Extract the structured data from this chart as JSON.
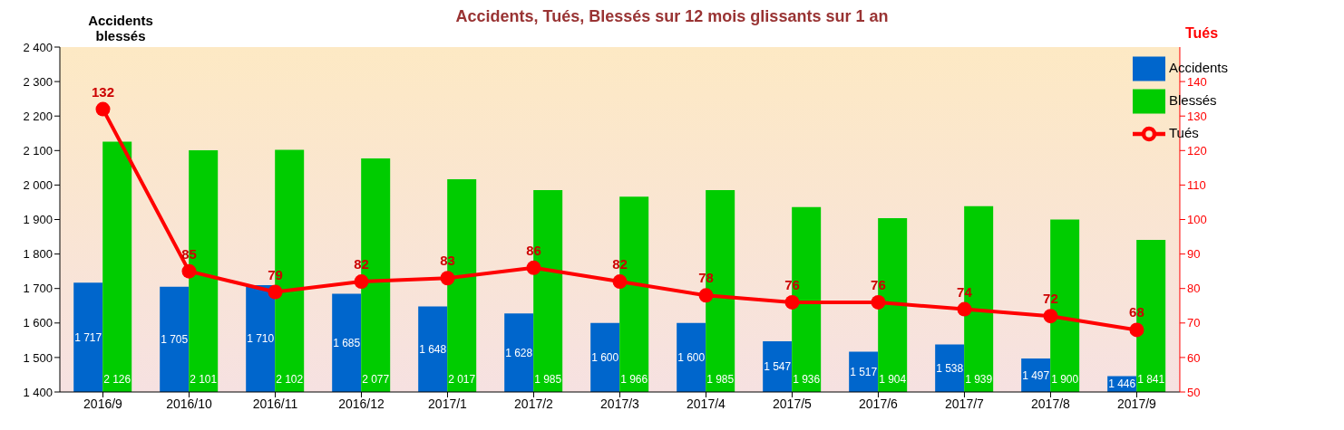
{
  "chart_data": {
    "type": "bar",
    "title": "Accidents, Tués, Blessés sur 12 mois glissants sur 1 an",
    "ylabel": "Accidents blessés",
    "y2label": "Tués",
    "categories": [
      "2016/9",
      "2016/10",
      "2016/11",
      "2016/12",
      "2017/1",
      "2017/2",
      "2017/3",
      "2017/4",
      "2017/5",
      "2017/6",
      "2017/7",
      "2017/8",
      "2017/9"
    ],
    "series": [
      {
        "name": "Accidents",
        "color": "#0066cc",
        "values": [
          1717,
          1705,
          1710,
          1685,
          1648,
          1628,
          1600,
          1600,
          1547,
          1517,
          1538,
          1497,
          1446
        ]
      },
      {
        "name": "Blessés",
        "color": "#00cc00",
        "values": [
          2126,
          2101,
          2102,
          2077,
          2017,
          1985,
          1966,
          1985,
          1936,
          1904,
          1939,
          1900,
          1841
        ]
      },
      {
        "name": "Tués",
        "type": "line",
        "axis": "y2",
        "color": "#ff0000",
        "marker": "circle",
        "values": [
          132,
          85,
          79,
          82,
          83,
          86,
          82,
          78,
          76,
          76,
          74,
          72,
          68
        ]
      }
    ],
    "ylim": [
      1400,
      2400
    ],
    "yticks": [
      {
        "value": 1400,
        "label": "1 400"
      },
      {
        "value": 1500,
        "label": "1 500"
      },
      {
        "value": 1600,
        "label": "1 600"
      },
      {
        "value": 1700,
        "label": "1 700"
      },
      {
        "value": 1800,
        "label": "1 800"
      },
      {
        "value": 1900,
        "label": "1 900"
      },
      {
        "value": 2000,
        "label": "2 000"
      },
      {
        "value": 2100,
        "label": "2 100"
      },
      {
        "value": 2200,
        "label": "2 200"
      },
      {
        "value": 2300,
        "label": "2 300"
      },
      {
        "value": 2400,
        "label": "2 400"
      }
    ],
    "y2lim": [
      50,
      150
    ],
    "y2ticks": [
      50,
      60,
      70,
      80,
      90,
      100,
      110,
      120,
      130,
      140
    ],
    "data_labels": true,
    "grid": false,
    "legend": "top right"
  }
}
